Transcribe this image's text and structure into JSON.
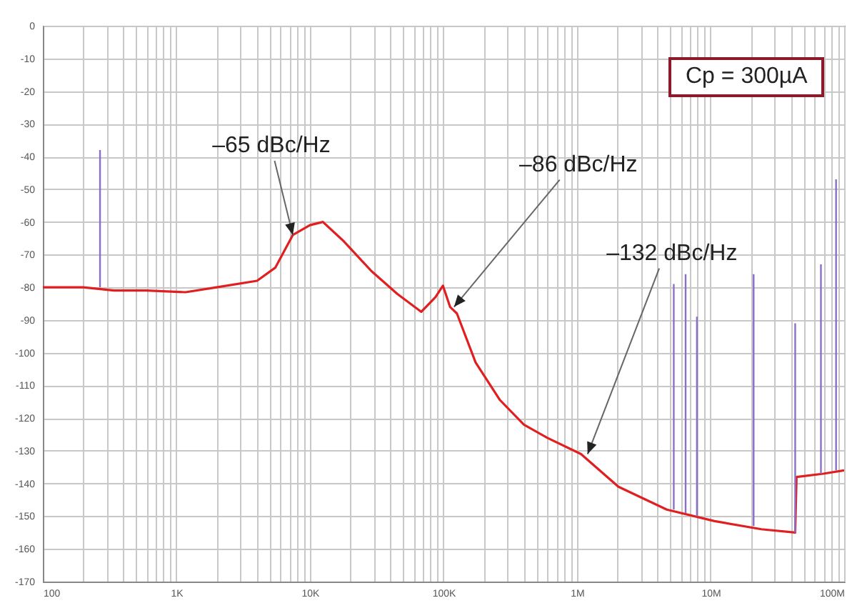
{
  "chart_data": {
    "type": "line",
    "xlim": [
      100,
      100000000
    ],
    "ylim": [
      -170,
      0
    ],
    "log": "x",
    "grid": true,
    "xticks": [
      {
        "value": 100,
        "label": "100"
      },
      {
        "value": 200,
        "label": null
      },
      {
        "value": 300,
        "label": null
      },
      {
        "value": 400,
        "label": null
      },
      {
        "value": 500,
        "label": null
      },
      {
        "value": 600,
        "label": null
      },
      {
        "value": 700,
        "label": null
      },
      {
        "value": 800,
        "label": null
      },
      {
        "value": 900,
        "label": null
      },
      {
        "value": 1000,
        "label": "1K"
      },
      {
        "value": 2000,
        "label": null
      },
      {
        "value": 3000,
        "label": null
      },
      {
        "value": 4000,
        "label": null
      },
      {
        "value": 5000,
        "label": null
      },
      {
        "value": 6000,
        "label": null
      },
      {
        "value": 7000,
        "label": null
      },
      {
        "value": 8000,
        "label": null
      },
      {
        "value": 9000,
        "label": null
      },
      {
        "value": 10000,
        "label": "10K"
      },
      {
        "value": 20000,
        "label": null
      },
      {
        "value": 30000,
        "label": null
      },
      {
        "value": 40000,
        "label": null
      },
      {
        "value": 50000,
        "label": null
      },
      {
        "value": 60000,
        "label": null
      },
      {
        "value": 70000,
        "label": null
      },
      {
        "value": 80000,
        "label": null
      },
      {
        "value": 90000,
        "label": null
      },
      {
        "value": 100000,
        "label": "100K"
      },
      {
        "value": 200000,
        "label": null
      },
      {
        "value": 300000,
        "label": null
      },
      {
        "value": 400000,
        "label": null
      },
      {
        "value": 500000,
        "label": null
      },
      {
        "value": 600000,
        "label": null
      },
      {
        "value": 700000,
        "label": null
      },
      {
        "value": 800000,
        "label": null
      },
      {
        "value": 900000,
        "label": null
      },
      {
        "value": 1000000,
        "label": "1M"
      },
      {
        "value": 2000000,
        "label": null
      },
      {
        "value": 3000000,
        "label": null
      },
      {
        "value": 4000000,
        "label": null
      },
      {
        "value": 5000000,
        "label": null
      },
      {
        "value": 6000000,
        "label": null
      },
      {
        "value": 7000000,
        "label": null
      },
      {
        "value": 8000000,
        "label": null
      },
      {
        "value": 9000000,
        "label": null
      },
      {
        "value": 10000000,
        "label": "10M"
      },
      {
        "value": 20000000,
        "label": null
      },
      {
        "value": 30000000,
        "label": null
      },
      {
        "value": 40000000,
        "label": null
      },
      {
        "value": 50000000,
        "label": null
      },
      {
        "value": 60000000,
        "label": null
      },
      {
        "value": 70000000,
        "label": null
      },
      {
        "value": 80000000,
        "label": null
      },
      {
        "value": 90000000,
        "label": null
      },
      {
        "value": 100000000,
        "label": "100M"
      }
    ],
    "yticks": [
      0,
      -10,
      -20,
      -30,
      -40,
      -50,
      -60,
      -70,
      -80,
      -90,
      -100,
      -110,
      -120,
      -130,
      -140,
      -150,
      -160,
      -170
    ],
    "series": [
      {
        "color": "#e02020",
        "x": [
          100,
          200,
          343,
          600,
          1170,
          2000,
          4020,
          5500,
          7440,
          10000,
          12500,
          18000,
          28800,
          45000,
          68200,
          87100,
          99000,
          112000,
          126000,
          174000,
          265000,
          400000,
          596000,
          1070000,
          2040000,
          4700000,
          10700000,
          24000000,
          43000000,
          44000000,
          70000000,
          100000000
        ],
        "values": [
          -80,
          -80,
          -81,
          -81,
          -81.5,
          -80,
          -78,
          -74,
          -64,
          -61,
          -60,
          -66,
          -75,
          -82,
          -87.5,
          -83,
          -79.5,
          -86,
          -88,
          -103,
          -114.5,
          -122,
          -126,
          -131,
          -141,
          -148,
          -151.5,
          -154,
          -155,
          -138,
          -137,
          -136
        ]
      },
      {
        "color": "#8a70c8",
        "x": [
          268,
          268,
          null,
          5300000,
          5300000,
          null,
          6500000,
          6500000,
          null,
          7900000,
          7900000,
          null,
          21000000,
          21000000,
          null,
          43000000,
          43000000,
          null,
          67000000,
          67000000,
          null,
          87000000,
          87000000
        ],
        "values": [
          -80,
          -38,
          null,
          -148,
          -79,
          null,
          -149,
          -76,
          null,
          -150,
          -89,
          null,
          -153,
          -76,
          null,
          -155,
          -91,
          null,
          -137,
          -73,
          null,
          -136,
          -47
        ]
      }
    ],
    "annotations": [
      {
        "text": "–65 dBc/Hz",
        "x": 7440,
        "y": -64
      },
      {
        "text": "–86 dBc/Hz",
        "x": 120000,
        "y": -86
      },
      {
        "text": "–132 dBc/Hz",
        "x": 1200000,
        "y": -131
      },
      "Cp = 300µA"
    ]
  }
}
